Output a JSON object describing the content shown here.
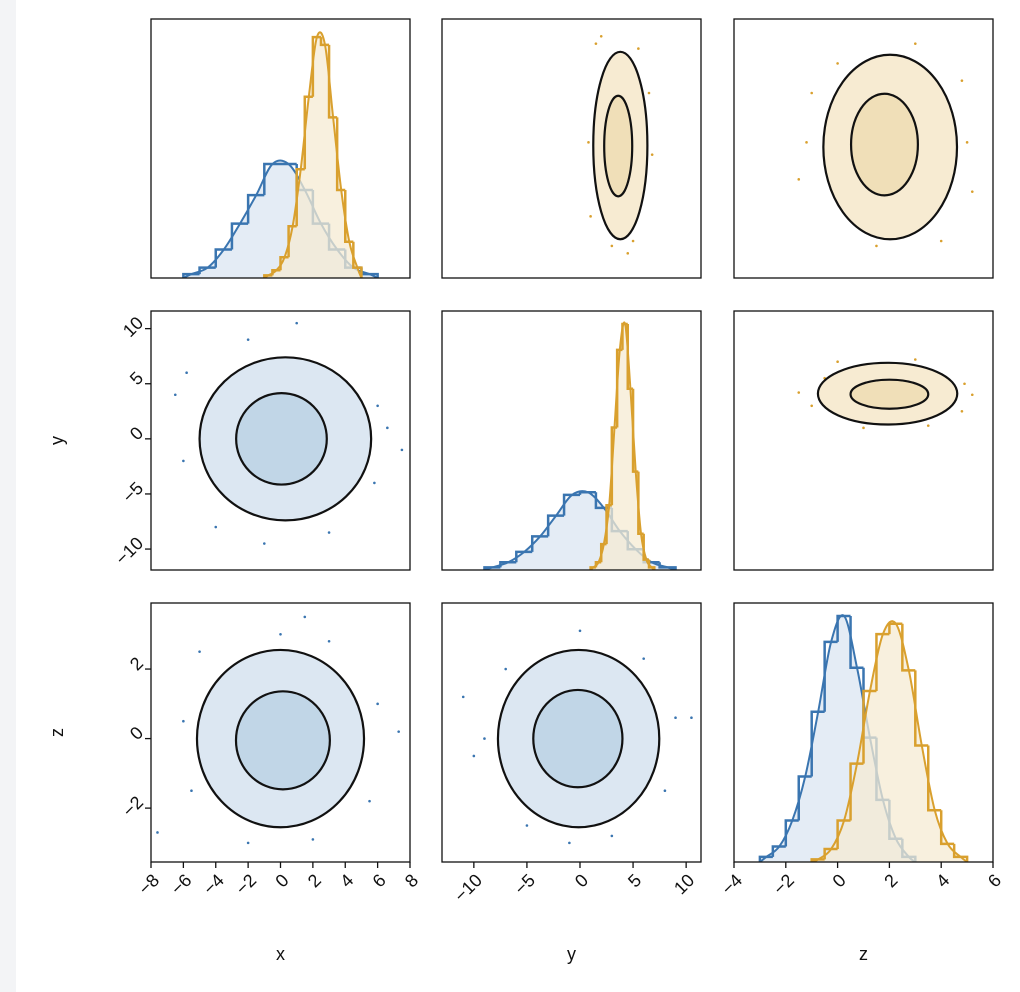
{
  "chart_data": {
    "type": "corner",
    "col_axes": [
      {
        "label": "x",
        "lim": [
          -8,
          8
        ],
        "ticks": [
          {
            "value": -8,
            "label": "−8"
          },
          {
            "value": -6,
            "label": "−6"
          },
          {
            "value": -4,
            "label": "−4"
          },
          {
            "value": -2,
            "label": "−2"
          },
          0,
          2,
          4,
          6,
          8
        ]
      },
      {
        "label": "y",
        "lim": [
          -13,
          11.4
        ],
        "ticks": [
          {
            "value": -10,
            "label": "−10"
          },
          {
            "value": -5,
            "label": "−5"
          },
          0,
          5,
          10
        ]
      },
      {
        "label": "z",
        "lim": [
          -4,
          6
        ],
        "ticks": [
          {
            "value": -4,
            "label": "−4"
          },
          {
            "value": -2,
            "label": "−2"
          },
          0,
          2,
          4,
          6
        ]
      }
    ],
    "row_axes": [
      {
        "lim": [
          -3.5,
          7
        ]
      },
      {
        "label": "y",
        "lim": [
          -11.9,
          11.6
        ],
        "ticks": [
          {
            "value": -10,
            "label": "−10"
          },
          {
            "value": -5,
            "label": "−5"
          },
          0,
          5,
          10
        ]
      },
      {
        "label": "z",
        "lim": [
          -3.55,
          3.9
        ],
        "ticks": [
          {
            "value": -2,
            "label": "−2"
          },
          0,
          2
        ]
      }
    ],
    "grid": [
      [
        {
          "kind": "hist",
          "ylim": [
            0,
            1
          ],
          "series": [
            {
              "color": "#3a75b0",
              "fill": "#dbe6f1",
              "bins": [
                -6,
                -5,
                -4,
                -3,
                -2,
                -1,
                0,
                1,
                2,
                3,
                4,
                5,
                6
              ],
              "values": [
                0.015,
                0.04,
                0.11,
                0.21,
                0.32,
                0.44,
                0.44,
                0.34,
                0.21,
                0.11,
                0.04,
                0.015
              ]
            },
            {
              "color": "#d9a02e",
              "fill": "#f6ebd3",
              "bins": [
                -1,
                -0.5,
                0,
                0.5,
                1,
                1.5,
                2,
                2.5,
                3,
                3.5,
                4,
                4.5,
                5
              ],
              "values": [
                0.01,
                0.03,
                0.08,
                0.2,
                0.42,
                0.7,
                0.93,
                0.9,
                0.62,
                0.34,
                0.14,
                0.04
              ]
            }
          ]
        },
        {
          "kind": "scatter",
          "color": "#d9a02e",
          "fills": [
            "#f7ebd2",
            "#f0dfb8"
          ],
          "points": {
            "x": [
              1.5,
              5.5,
              0.8,
              6.8,
              3,
              4.5,
              1,
              6.5,
              2,
              5
            ],
            "y": [
              6,
              5.8,
              2,
              1.5,
              -2.2,
              -2.5,
              -1,
              4,
              6.3,
              -2
            ]
          },
          "contours": [
            {
              "cx": 3.8,
              "cy": 1.87,
              "rx": 2.55,
              "ry": 3.8
            },
            {
              "cx": 3.6,
              "cy": 1.85,
              "rx": 1.32,
              "ry": 2.04
            }
          ]
        },
        {
          "kind": "scatter",
          "color": "#d9a02e",
          "fills": [
            "#f7ebd2",
            "#f0dfb8"
          ],
          "points": {
            "x": [
              -1.2,
              -1.5,
              5,
              5.2,
              0,
              3,
              1.5,
              4,
              -1,
              4.8
            ],
            "y": [
              2,
              0.5,
              2,
              0,
              5.2,
              6,
              -2.2,
              -2,
              4,
              4.5
            ]
          },
          "contours": [
            {
              "cx": 2.03,
              "cy": 1.81,
              "rx": 2.58,
              "ry": 3.74
            },
            {
              "cx": 1.81,
              "cy": 1.91,
              "rx": 1.29,
              "ry": 2.06
            }
          ]
        }
      ],
      [
        {
          "kind": "scatter",
          "color": "#3a75b0",
          "fills": [
            "#dce7f2",
            "#c1d6e7"
          ],
          "points": {
            "x": [
              -6.5,
              -6,
              6,
              5.8,
              -2,
              1,
              -4,
              3,
              6.6,
              -5.8,
              7.5,
              -1
            ],
            "y": [
              4,
              -2,
              3,
              -4,
              9,
              10.5,
              -8,
              -8.5,
              1,
              6,
              -1,
              -9.5
            ]
          },
          "contours": [
            {
              "cx": 0.3,
              "cy": 0,
              "rx": 5.3,
              "ry": 7.4
            },
            {
              "cx": 0.06,
              "cy": 0,
              "rx": 2.8,
              "ry": 4.15
            }
          ]
        },
        {
          "kind": "hist",
          "ylim": [
            0,
            1
          ],
          "series": [
            {
              "color": "#3a75b0",
              "fill": "#dbe6f1",
              "bins": [
                -9,
                -7.5,
                -6,
                -4.5,
                -3,
                -1.5,
                0,
                1.5,
                3,
                4.5,
                6,
                7.5,
                9
              ],
              "values": [
                0.01,
                0.03,
                0.07,
                0.13,
                0.21,
                0.29,
                0.3,
                0.24,
                0.15,
                0.08,
                0.03,
                0.01
              ]
            },
            {
              "color": "#d9a02e",
              "fill": "#f6ebd3",
              "bins": [
                1,
                1.5,
                2,
                2.5,
                3,
                3.5,
                4,
                4.5,
                5,
                5.5,
                6,
                6.5,
                7
              ],
              "values": [
                0.01,
                0.03,
                0.1,
                0.25,
                0.55,
                0.85,
                0.95,
                0.7,
                0.38,
                0.14,
                0.04,
                0.01
              ]
            }
          ]
        },
        {
          "kind": "scatter",
          "color": "#d9a02e",
          "fills": [
            "#f7ebd2",
            "#f0dfb8"
          ],
          "points": {
            "x": [
              -1.5,
              -1,
              5.2,
              4.9,
              0,
              3,
              1,
              3.5,
              -0.5,
              4.8
            ],
            "y": [
              4.2,
              3,
              4,
              5,
              7,
              7.2,
              1,
              1.2,
              5.5,
              2.5
            ]
          },
          "contours": [
            {
              "cx": 1.93,
              "cy": 4.1,
              "rx": 2.69,
              "ry": 2.8
            },
            {
              "cx": 2.0,
              "cy": 4.05,
              "rx": 1.5,
              "ry": 1.32
            }
          ]
        }
      ],
      [
        {
          "kind": "scatter",
          "color": "#3a75b0",
          "fills": [
            "#dce7f2",
            "#c1d6e7"
          ],
          "points": {
            "x": [
              -6,
              -5.5,
              6,
              5.5,
              0,
              1.5,
              -2,
              2,
              -7.6,
              -5,
              7.3,
              3
            ],
            "y": [
              0.5,
              -1.5,
              1,
              -1.8,
              3,
              3.5,
              -3,
              -2.9,
              -2.7,
              2.5,
              0.2,
              2.8
            ]
          },
          "contours": [
            {
              "cx": 0,
              "cy": 0,
              "rx": 5.16,
              "ry": 2.55
            },
            {
              "cx": 0.15,
              "cy": -0.05,
              "rx": 2.9,
              "ry": 1.41
            }
          ]
        },
        {
          "kind": "scatter",
          "color": "#3a75b0",
          "fills": [
            "#dce7f2",
            "#c1d6e7"
          ],
          "points": {
            "x": [
              -9,
              -10,
              9,
              8,
              0,
              -1,
              3,
              -7,
              10.5,
              -11,
              6,
              -5
            ],
            "y": [
              0,
              -0.5,
              0.6,
              -1.5,
              3.1,
              -3,
              -2.8,
              2,
              0.6,
              1.2,
              2.3,
              -2.5
            ]
          },
          "contours": [
            {
              "cx": -0.13,
              "cy": 0,
              "rx": 7.6,
              "ry": 2.55
            },
            {
              "cx": -0.2,
              "cy": 0,
              "rx": 4.2,
              "ry": 1.4
            }
          ]
        },
        {
          "kind": "hist",
          "ylim": [
            0,
            1
          ],
          "series": [
            {
              "color": "#3a75b0",
              "fill": "#dbe6f1",
              "bins": [
                -3,
                -2.5,
                -2,
                -1.5,
                -1,
                -0.5,
                0,
                0.5,
                1,
                1.5,
                2,
                2.5,
                3
              ],
              "values": [
                0.02,
                0.06,
                0.16,
                0.33,
                0.58,
                0.85,
                0.95,
                0.75,
                0.48,
                0.24,
                0.09,
                0.02
              ]
            },
            {
              "color": "#d9a02e",
              "fill": "#f6ebd3",
              "bins": [
                -1,
                -0.5,
                0,
                0.5,
                1,
                1.5,
                2,
                2.5,
                3,
                3.5,
                4,
                4.5,
                5
              ],
              "values": [
                0.01,
                0.05,
                0.16,
                0.38,
                0.66,
                0.88,
                0.92,
                0.74,
                0.45,
                0.2,
                0.07,
                0.02
              ]
            }
          ]
        }
      ]
    ]
  }
}
